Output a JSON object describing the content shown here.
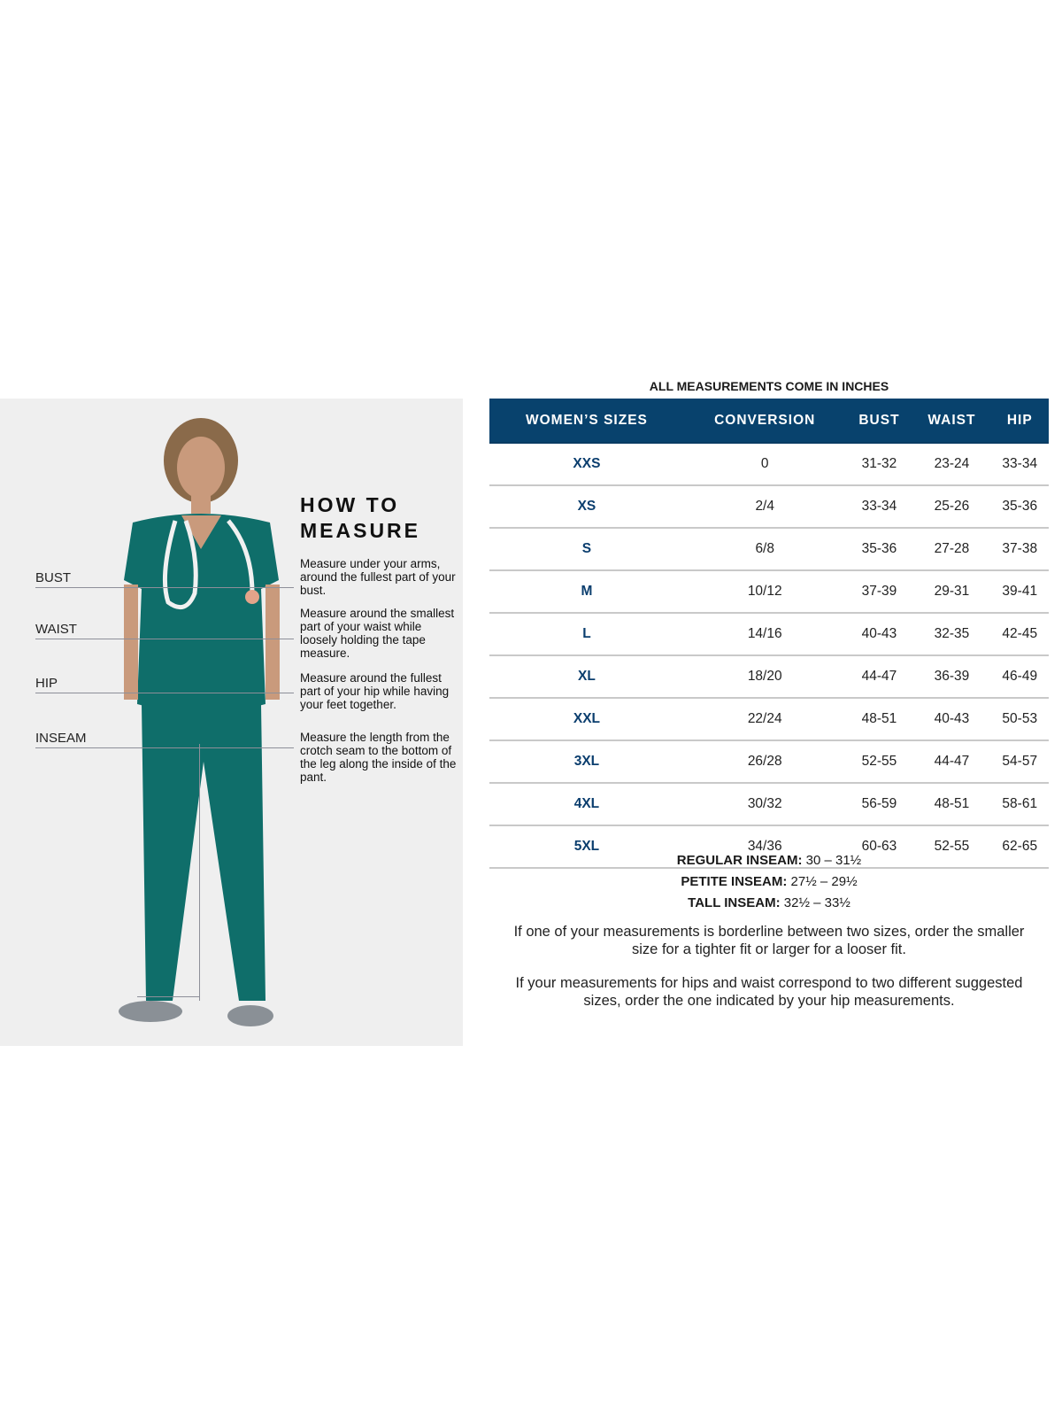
{
  "left_panel": {
    "heading": "HOW TO MEASURE",
    "measurements": [
      {
        "label": "BUST",
        "description": "Measure under your arms, around the fullest part of your bust."
      },
      {
        "label": "WAIST",
        "description": "Measure around the smallest part of your waist while loosely holding the tape measure."
      },
      {
        "label": "HIP",
        "description": "Measure around the fullest part of your hip while having your feet together."
      },
      {
        "label": "INSEAM",
        "description": "Measure the length from the crotch seam to the bottom of the leg along the inside of the pant."
      }
    ],
    "scrub_color": "#0f6e6a",
    "background_color": "#efefef"
  },
  "chart": {
    "title": "ALL MEASUREMENTS COME IN INCHES",
    "header_color": "#08426d",
    "columns": [
      "WOMEN’S SIZES",
      "CONVERSION",
      "BUST",
      "WAIST",
      "HIP"
    ],
    "rows": [
      [
        "XXS",
        "0",
        "31-32",
        "23-24",
        "33-34"
      ],
      [
        "XS",
        "2/4",
        "33-34",
        "25-26",
        "35-36"
      ],
      [
        "S",
        "6/8",
        "35-36",
        "27-28",
        "37-38"
      ],
      [
        "M",
        "10/12",
        "37-39",
        "29-31",
        "39-41"
      ],
      [
        "L",
        "14/16",
        "40-43",
        "32-35",
        "42-45"
      ],
      [
        "XL",
        "18/20",
        "44-47",
        "36-39",
        "46-49"
      ],
      [
        "XXL",
        "22/24",
        "48-51",
        "40-43",
        "50-53"
      ],
      [
        "3XL",
        "26/28",
        "52-55",
        "44-47",
        "54-57"
      ],
      [
        "4XL",
        "30/32",
        "56-59",
        "48-51",
        "58-61"
      ],
      [
        "5XL",
        "34/36",
        "60-63",
        "52-55",
        "62-65"
      ]
    ]
  },
  "inseams": [
    {
      "label": "REGULAR INSEAM:",
      "value": "30  – 31½"
    },
    {
      "label": "PETITE INSEAM:",
      "value": "27½ – 29½"
    },
    {
      "label": "TALL INSEAM:",
      "value": "32½ – 33½"
    }
  ],
  "notes": [
    "If one of your measurements is borderline between two sizes, order the smaller size for a tighter fit or larger for a looser fit.",
    "If your measurements for hips and waist correspond to two different suggested sizes, order the one indicated by your hip measurements."
  ]
}
